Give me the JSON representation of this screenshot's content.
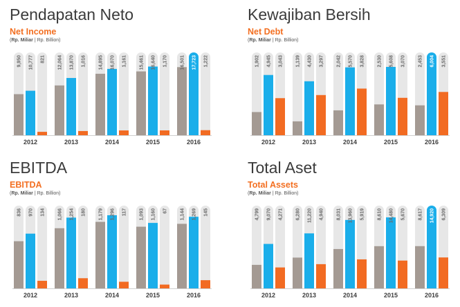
{
  "colors": {
    "primary_bar": "#a49a93",
    "highlight_bar": "#1aaeea",
    "secondary_bar": "#f26b22",
    "track": "#e7e7e7",
    "title": "#3b3b3b",
    "subtitle": "#f36f21"
  },
  "unit_label": {
    "local": "Rp. Miliar",
    "sep": "|",
    "english": "Rp. Billion"
  },
  "panels": [
    {
      "title": "Pendapatan Neto",
      "subtitle": "Net Income"
    },
    {
      "title": "Kewajiban Bersih",
      "subtitle": "Net Debt"
    },
    {
      "title": "EBITDA",
      "subtitle": "EBITDA"
    },
    {
      "title": "Total Aset",
      "subtitle": "Total Assets"
    }
  ],
  "chart_data": [
    {
      "type": "bar",
      "categories": [
        "2012",
        "2013",
        "2014",
        "2015",
        "2016"
      ],
      "series": [
        {
          "values": [
            9950,
            12064,
            14895,
            15461,
            16501
          ],
          "labels": [
            "9,950",
            "12,064",
            "14,895",
            "15,461",
            "16,501"
          ]
        },
        {
          "values": [
            10777,
            13870,
            16070,
            16640,
            17723
          ],
          "labels": [
            "10,777",
            "13,870",
            "16,070",
            "16,640",
            "17,723"
          ]
        },
        {
          "values": [
            821,
            1016,
            1161,
            1170,
            1222
          ],
          "labels": [
            "821",
            "1,016",
            "1,161",
            "1,170",
            "1,222"
          ]
        }
      ]
    },
    {
      "type": "bar",
      "categories": [
        "2012",
        "2013",
        "2014",
        "2015",
        "2016"
      ],
      "series": [
        {
          "values": [
            1902,
            1139,
            2042,
            2530,
            2453
          ],
          "labels": [
            "1,902",
            "1,139",
            "2,042",
            "2,530",
            "2,453"
          ]
        },
        {
          "values": [
            4945,
            4430,
            5570,
            5608,
            6004
          ],
          "labels": [
            "4,945",
            "4,430",
            "5,570",
            "5,608",
            "6,004"
          ]
        },
        {
          "values": [
            3043,
            3297,
            3828,
            3070,
            3551
          ],
          "labels": [
            "3,043",
            "3,297",
            "3,828",
            "3,070",
            "3,551"
          ]
        }
      ]
    },
    {
      "type": "bar",
      "categories": [
        "2012",
        "2013",
        "2014",
        "2015",
        "2016"
      ],
      "series": [
        {
          "values": [
            836,
            1066,
            1179,
            1093,
            1144
          ],
          "labels": [
            "836",
            "1,066",
            "1,179",
            "1,093",
            "1,144"
          ]
        },
        {
          "values": [
            970,
            1254,
            1296,
            1160,
            1269
          ],
          "labels": [
            "970",
            "1,254",
            "1,296",
            "1,160",
            "1,269"
          ]
        },
        {
          "values": [
            134,
            180,
            117,
            67,
            145
          ],
          "labels": [
            "134",
            "180",
            "117",
            "67",
            "145"
          ]
        }
      ]
    },
    {
      "type": "bar",
      "categories": [
        "2012",
        "2013",
        "2014",
        "2015",
        "2016"
      ],
      "series": [
        {
          "values": [
            4799,
            6280,
            8031,
            8610,
            8617
          ],
          "labels": [
            "4,799",
            "6,280",
            "8,031",
            "8,610",
            "8,617"
          ]
        },
        {
          "values": [
            9070,
            11220,
            13960,
            14480,
            14920
          ],
          "labels": [
            "9,070",
            "11,220",
            "13,960",
            "14,480",
            "14,920"
          ]
        },
        {
          "values": [
            4271,
            4940,
            5919,
            5670,
            6309
          ],
          "labels": [
            "4,271",
            "4,940",
            "5,919",
            "5,670",
            "6,309"
          ]
        }
      ]
    }
  ]
}
